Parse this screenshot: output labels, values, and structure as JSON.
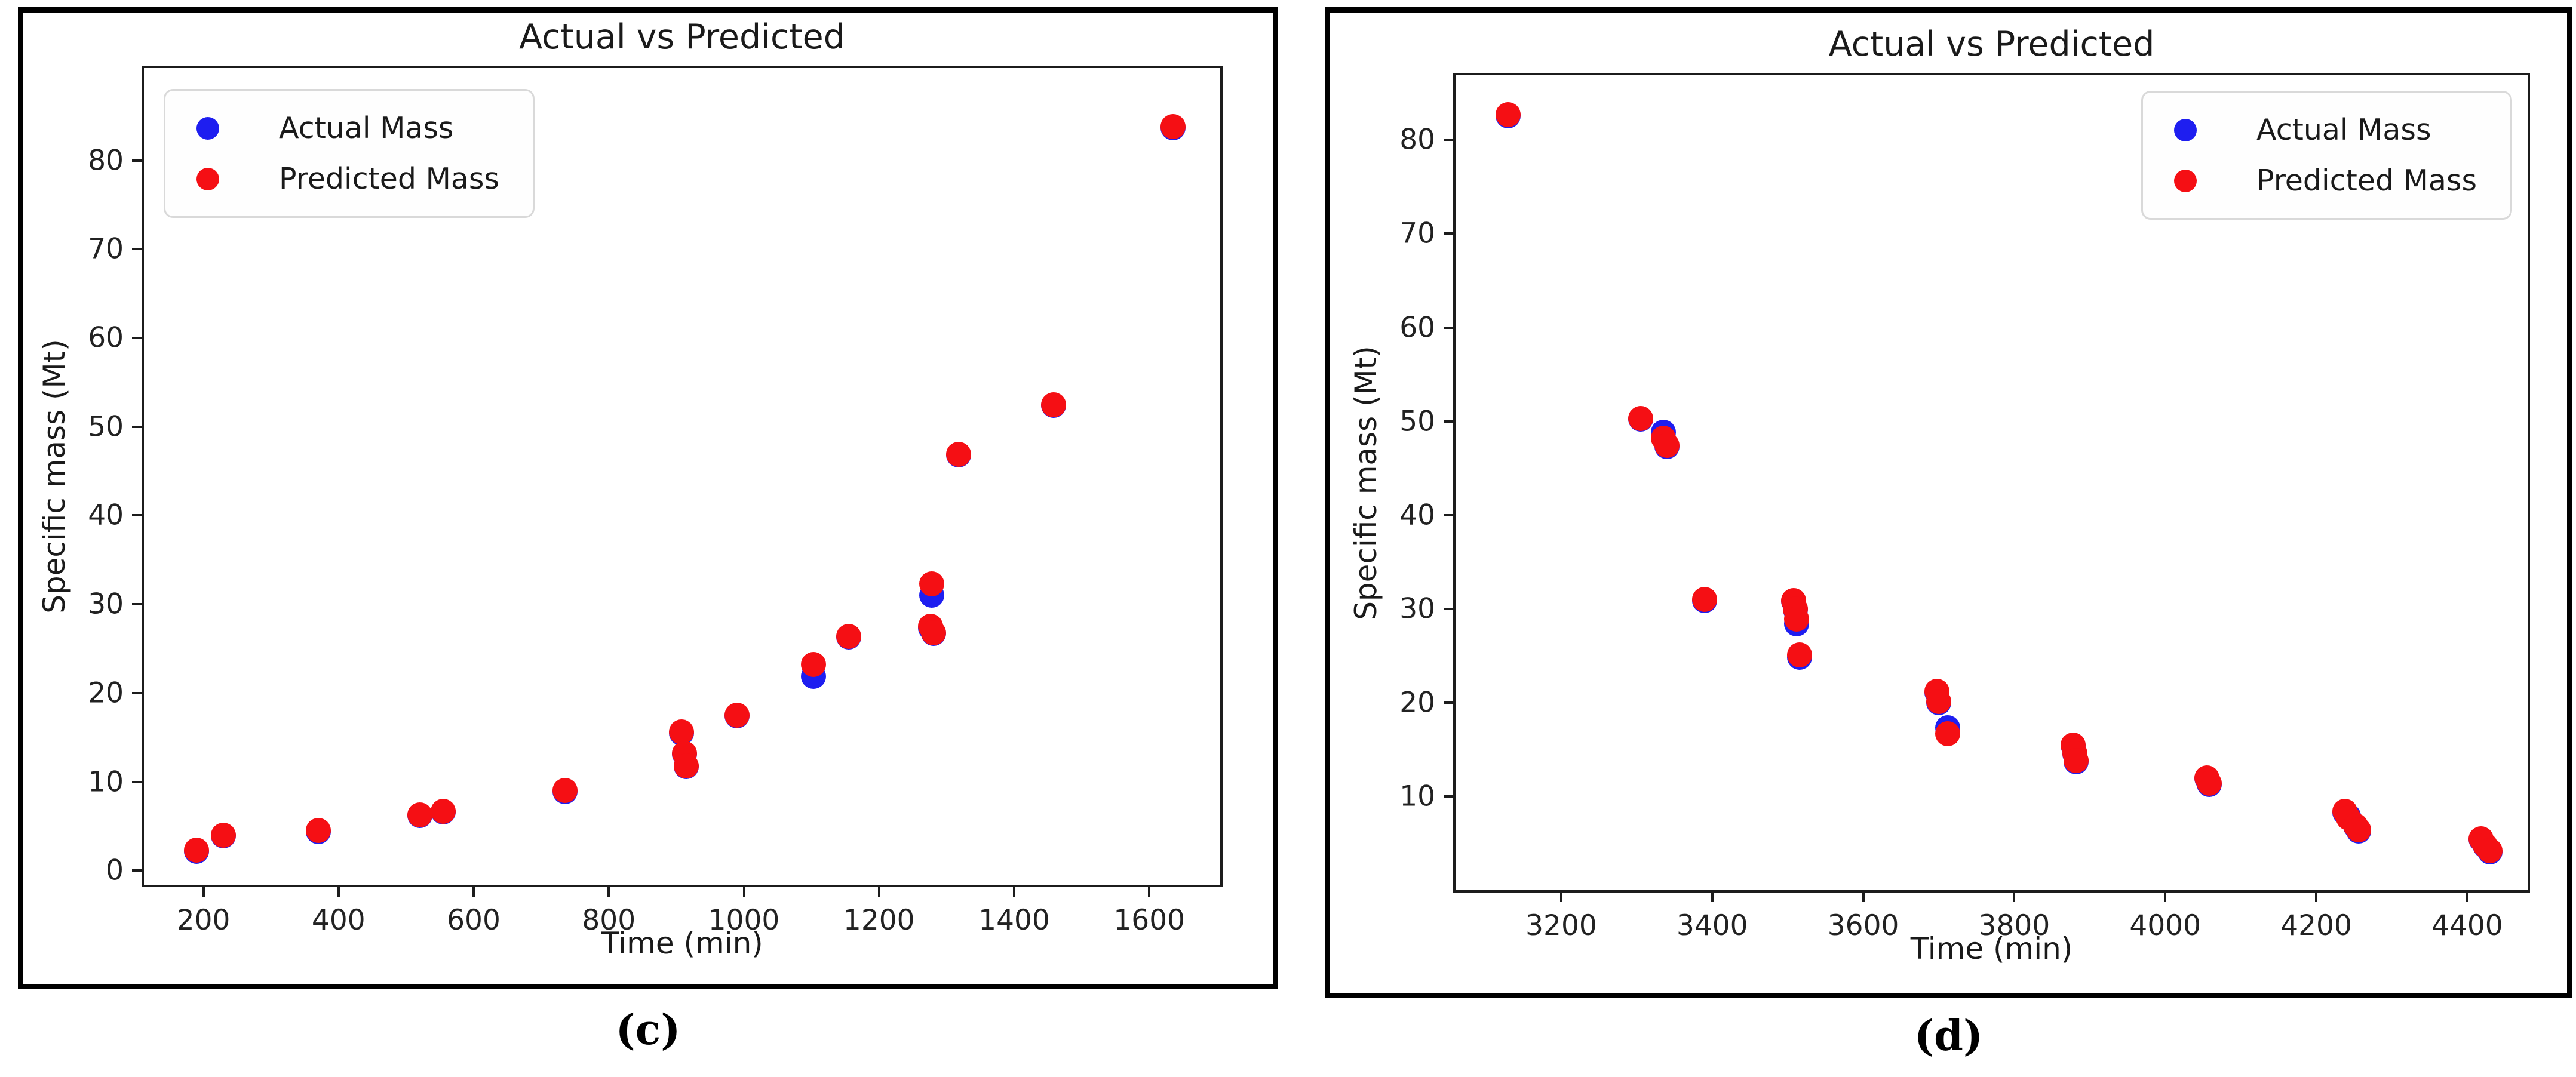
{
  "page": {
    "background": "#ffffff"
  },
  "chart_data": [
    {
      "type": "scatter",
      "panel_caption": "(c)",
      "title": "Actual vs Predicted",
      "xlabel": "Time (min)",
      "ylabel": "Specific mass (Mt)",
      "xlim": [
        112,
        1705
      ],
      "ylim": [
        -1.6,
        90.4
      ],
      "xticks": [
        200,
        400,
        600,
        800,
        1000,
        1200,
        1400,
        1600
      ],
      "yticks": [
        0,
        10,
        20,
        30,
        40,
        50,
        60,
        70,
        80
      ],
      "grid": false,
      "legend_position": "upper-left",
      "series": [
        {
          "name": "Actual Mass",
          "color": "#1e1ef0",
          "dot_name": "actual-mass-point",
          "points": [
            [
              190,
              2.2
            ],
            [
              230,
              3.9
            ],
            [
              370,
              4.4
            ],
            [
              520,
              6.2
            ],
            [
              555,
              6.6
            ],
            [
              735,
              8.9
            ],
            [
              908,
              15.5
            ],
            [
              912,
              13.1
            ],
            [
              915,
              11.7
            ],
            [
              990,
              17.4
            ],
            [
              1103,
              21.9
            ],
            [
              1155,
              26.3
            ],
            [
              1276,
              27.3
            ],
            [
              1281,
              26.7
            ],
            [
              1278,
              31.0
            ],
            [
              1318,
              46.8
            ],
            [
              1458,
              52.4
            ],
            [
              1635,
              83.7
            ]
          ]
        },
        {
          "name": "Predicted Mass",
          "color": "#f50f14",
          "dot_name": "predicted-mass-point",
          "points": [
            [
              190,
              2.3
            ],
            [
              230,
              4.0
            ],
            [
              370,
              4.5
            ],
            [
              520,
              6.3
            ],
            [
              555,
              6.7
            ],
            [
              735,
              9.0
            ],
            [
              908,
              15.6
            ],
            [
              912,
              13.2
            ],
            [
              915,
              11.8
            ],
            [
              990,
              17.5
            ],
            [
              1103,
              23.2
            ],
            [
              1155,
              26.4
            ],
            [
              1276,
              27.5
            ],
            [
              1281,
              26.8
            ],
            [
              1278,
              32.3
            ],
            [
              1318,
              46.9
            ],
            [
              1458,
              52.5
            ],
            [
              1635,
              83.8
            ]
          ]
        }
      ]
    },
    {
      "type": "scatter",
      "panel_caption": "(d)",
      "title": "Actual vs Predicted",
      "xlabel": "Time (min)",
      "ylabel": "Specific mass (Mt)",
      "xlim": [
        3060,
        4480
      ],
      "ylim": [
        0,
        86.9
      ],
      "xticks": [
        3200,
        3400,
        3600,
        3800,
        4000,
        4200,
        4400
      ],
      "yticks": [
        10,
        20,
        30,
        40,
        50,
        60,
        70,
        80
      ],
      "grid": false,
      "legend_position": "upper-right",
      "series": [
        {
          "name": "Actual Mass",
          "color": "#1e1ef0",
          "dot_name": "actual-mass-point",
          "points": [
            [
              3130,
              82.6
            ],
            [
              3305,
              50.2
            ],
            [
              3335,
              48.8
            ],
            [
              3340,
              47.3
            ],
            [
              3390,
              30.9
            ],
            [
              3508,
              30.8
            ],
            [
              3510,
              29.9
            ],
            [
              3512,
              28.4
            ],
            [
              3516,
              24.8
            ],
            [
              3698,
              21.1
            ],
            [
              3700,
              20.0
            ],
            [
              3712,
              17.3
            ],
            [
              3878,
              15.4
            ],
            [
              3880,
              14.5
            ],
            [
              3882,
              13.7
            ],
            [
              4055,
              11.9
            ],
            [
              4058,
              11.3
            ],
            [
              4238,
              8.3
            ],
            [
              4243,
              7.9
            ],
            [
              4252,
              6.8
            ],
            [
              4256,
              6.3
            ],
            [
              4418,
              5.4
            ],
            [
              4424,
              4.7
            ],
            [
              4430,
              4.1
            ]
          ]
        },
        {
          "name": "Predicted Mass",
          "color": "#f50f14",
          "dot_name": "predicted-mass-point",
          "points": [
            [
              3130,
              82.7
            ],
            [
              3305,
              50.3
            ],
            [
              3335,
              48.2
            ],
            [
              3340,
              47.4
            ],
            [
              3390,
              31.0
            ],
            [
              3508,
              30.9
            ],
            [
              3510,
              30.0
            ],
            [
              3512,
              28.9
            ],
            [
              3516,
              25.1
            ],
            [
              3698,
              21.2
            ],
            [
              3700,
              20.1
            ],
            [
              3712,
              16.7
            ],
            [
              3878,
              15.5
            ],
            [
              3880,
              14.6
            ],
            [
              3882,
              13.8
            ],
            [
              4055,
              12.0
            ],
            [
              4058,
              11.4
            ],
            [
              4238,
              8.4
            ],
            [
              4243,
              7.7
            ],
            [
              4252,
              6.9
            ],
            [
              4256,
              6.4
            ],
            [
              4418,
              5.5
            ],
            [
              4424,
              4.8
            ],
            [
              4430,
              4.2
            ]
          ]
        }
      ]
    }
  ]
}
